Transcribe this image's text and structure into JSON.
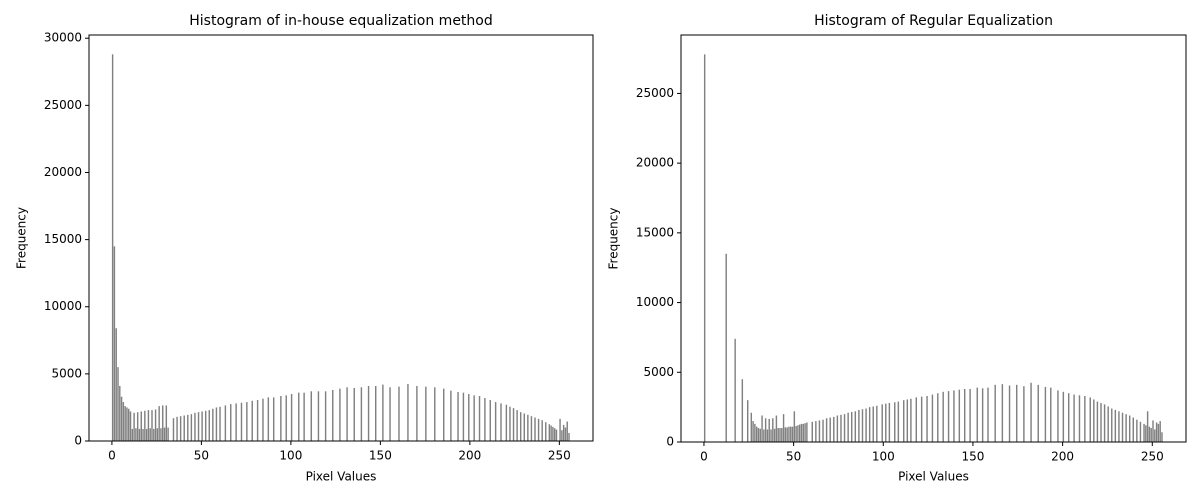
{
  "chart_data": [
    {
      "type": "bar",
      "title": "Histogram of in-house equalization method",
      "x_label": "Pixel Values",
      "y_label": "Frequency",
      "color": "#808080",
      "x": [
        0,
        1,
        2,
        3,
        4,
        5,
        6,
        7,
        8,
        9,
        10,
        11,
        12,
        13,
        14,
        15,
        16,
        17,
        18,
        19,
        20,
        21,
        22,
        23,
        24,
        25,
        26,
        27,
        28,
        29,
        30,
        31,
        34,
        36,
        38,
        40,
        42,
        44,
        46,
        48,
        50,
        52,
        54,
        56,
        58,
        60,
        63,
        66,
        69,
        72,
        75,
        78,
        81,
        84,
        87,
        90,
        94,
        97,
        100,
        104,
        107,
        111,
        115,
        119,
        123,
        127,
        131,
        135,
        139,
        143,
        147,
        151,
        155,
        160,
        165,
        170,
        175,
        180,
        185,
        189,
        193,
        196,
        199,
        202,
        205,
        208,
        211,
        214,
        217,
        220,
        222,
        224,
        226,
        228,
        230,
        232,
        234,
        236,
        238,
        240,
        242,
        244,
        245,
        246,
        247,
        248,
        250,
        251,
        252,
        253,
        254,
        255
      ],
      "values": [
        28800,
        14500,
        8400,
        5500,
        4100,
        3300,
        2900,
        2600,
        2500,
        2400,
        2200,
        900,
        2100,
        950,
        2150,
        900,
        2200,
        900,
        2250,
        900,
        2300,
        950,
        2300,
        900,
        2350,
        950,
        2600,
        950,
        2650,
        1000,
        2650,
        1000,
        1700,
        1800,
        1850,
        1900,
        1950,
        2000,
        2100,
        2150,
        2200,
        2250,
        2300,
        2400,
        2500,
        2550,
        2650,
        2750,
        2800,
        2850,
        2900,
        3000,
        3050,
        3150,
        3250,
        3250,
        3350,
        3400,
        3500,
        3600,
        3600,
        3700,
        3700,
        3700,
        3800,
        3900,
        4000,
        3950,
        4000,
        4100,
        4100,
        4200,
        4000,
        4050,
        4250,
        4100,
        4050,
        4000,
        3900,
        3750,
        3650,
        3600,
        3500,
        3400,
        3350,
        3200,
        3050,
        2900,
        2800,
        2700,
        2550,
        2450,
        2300,
        2150,
        2050,
        1950,
        1850,
        1750,
        1650,
        1550,
        1400,
        1250,
        1150,
        1050,
        950,
        850,
        1650,
        800,
        1200,
        1000,
        1450,
        600
      ],
      "xlim": [
        -12.8,
        268.8
      ],
      "xticks": [
        0,
        50,
        100,
        150,
        200,
        250
      ],
      "ylim": [
        0,
        30240
      ],
      "yticks": [
        0,
        5000,
        10000,
        15000,
        20000,
        25000,
        30000
      ]
    },
    {
      "type": "bar",
      "title": "Histogram of Regular Equalization",
      "x_label": "Pixel Values",
      "y_label": "Frequency",
      "color": "#808080",
      "x": [
        0,
        12,
        17,
        21,
        24,
        26,
        27,
        28,
        29,
        30,
        31,
        32,
        33,
        34,
        35,
        36,
        37,
        38,
        39,
        40,
        41,
        42,
        43,
        44,
        45,
        46,
        47,
        48,
        49,
        50,
        51,
        52,
        53,
        54,
        55,
        56,
        57,
        60,
        62,
        64,
        66,
        68,
        70,
        72,
        74,
        76,
        78,
        80,
        82,
        84,
        86,
        88,
        90,
        92,
        94,
        96,
        99,
        101,
        103,
        106,
        108,
        111,
        113,
        115,
        118,
        121,
        124,
        127,
        130,
        133,
        136,
        139,
        142,
        145,
        148,
        152,
        155,
        158,
        162,
        166,
        170,
        174,
        178,
        182,
        186,
        190,
        193,
        197,
        200,
        203,
        206,
        209,
        212,
        215,
        217,
        219,
        221,
        223,
        225,
        227,
        229,
        231,
        233,
        235,
        237,
        239,
        241,
        243,
        245,
        246,
        247,
        248,
        249,
        250,
        251,
        252,
        253,
        254,
        255
      ],
      "values": [
        27800,
        13500,
        7400,
        4500,
        3000,
        2100,
        1500,
        1300,
        1100,
        1000,
        950,
        1900,
        900,
        1700,
        900,
        1650,
        900,
        1700,
        950,
        1900,
        1000,
        1000,
        1000,
        2000,
        1050,
        1050,
        1100,
        1100,
        1100,
        2200,
        1150,
        1200,
        1250,
        1300,
        1300,
        1350,
        1400,
        1450,
        1500,
        1550,
        1600,
        1700,
        1750,
        1800,
        1900,
        1950,
        2000,
        2100,
        2150,
        2200,
        2300,
        2350,
        2400,
        2500,
        2550,
        2600,
        2700,
        2750,
        2800,
        2850,
        2900,
        3000,
        3050,
        3100,
        3200,
        3250,
        3300,
        3400,
        3500,
        3600,
        3650,
        3700,
        3750,
        3800,
        3800,
        3900,
        3850,
        3900,
        4100,
        4150,
        4050,
        4100,
        4000,
        4250,
        4100,
        3950,
        3900,
        3700,
        3600,
        3500,
        3400,
        3350,
        3300,
        3200,
        3050,
        2900,
        2800,
        2700,
        2550,
        2400,
        2300,
        2200,
        2100,
        2000,
        1900,
        1750,
        1600,
        1450,
        1300,
        1200,
        2200,
        1100,
        1000,
        1550,
        900,
        1400,
        1300,
        1500,
        700
      ],
      "xlim": [
        -12.8,
        268.8
      ],
      "xticks": [
        0,
        50,
        100,
        150,
        200,
        250
      ],
      "ylim": [
        0,
        29190
      ],
      "yticks": [
        0,
        5000,
        10000,
        15000,
        20000,
        25000
      ]
    }
  ]
}
